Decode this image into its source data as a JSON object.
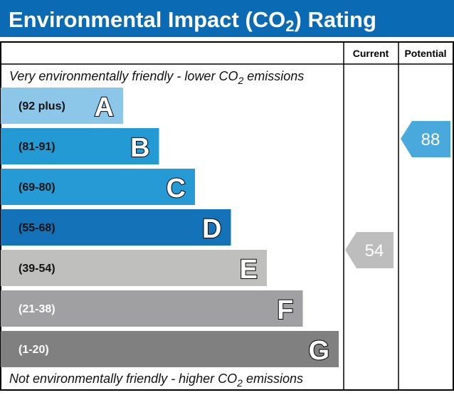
{
  "title": {
    "text": "Environmental Impact (CO",
    "sub": "2",
    "suffix": ") Rating"
  },
  "header": {
    "current": "Current",
    "potential": "Potential"
  },
  "top_note": {
    "text": "Very environmentally friendly - lower CO",
    "sub": "2",
    "suffix": " emissions"
  },
  "bottom_note": {
    "text": "Not environmentally friendly - higher CO",
    "sub": "2",
    "suffix": " emissions"
  },
  "colors": {
    "title_bar": "#0a6ab4",
    "current_arrow": "#bdbdbd",
    "potential_arrow": "#4aa9dc"
  },
  "chart_data": {
    "type": "bar",
    "categories": [
      "A",
      "B",
      "C",
      "D",
      "E",
      "F",
      "G"
    ],
    "ranges": [
      "(92 plus)",
      "(81-91)",
      "(69-80)",
      "(55-68)",
      "(39-54)",
      "(21-38)",
      "(1-20)"
    ],
    "colors": [
      "#8cc6e8",
      "#239ad4",
      "#259ad4",
      "#1473b8",
      "#bfbfbe",
      "#a0a0a2",
      "#808080"
    ],
    "range_text_colors": [
      "#111111",
      "#111111",
      "#111111",
      "#111111",
      "#111111",
      "#ffffff",
      "#ffffff"
    ],
    "current": {
      "value": 54,
      "band": "E"
    },
    "potential": {
      "value": 88,
      "band": "B"
    }
  }
}
